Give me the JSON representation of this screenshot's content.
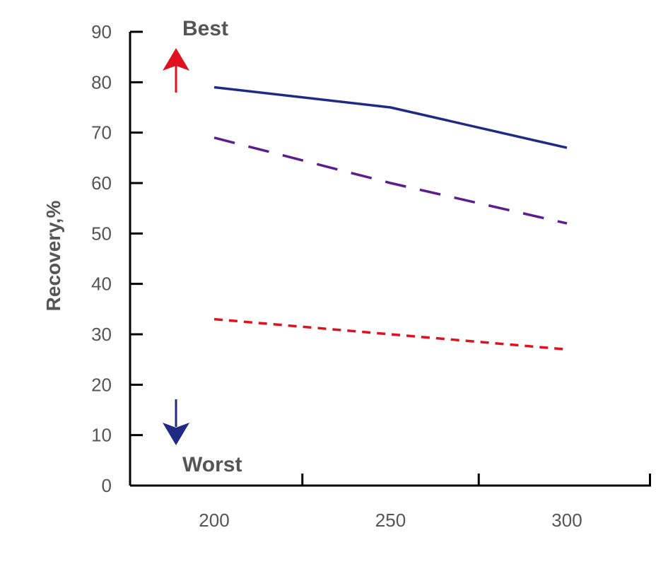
{
  "chart_data": {
    "type": "line",
    "title": "",
    "xlabel": "",
    "ylabel": "Recovery,%",
    "x": [
      200,
      250,
      300
    ],
    "xlim": [
      200,
      300
    ],
    "ylim": [
      0,
      90
    ],
    "y_ticks": [
      0,
      10,
      20,
      30,
      40,
      50,
      60,
      70,
      80,
      90
    ],
    "grid": false,
    "series": [
      {
        "values": [
          79,
          75,
          67
        ],
        "color": "#1f2a85",
        "style": "solid"
      },
      {
        "values": [
          69,
          60,
          52
        ],
        "color": "#5b1e8c",
        "style": "long-dash"
      },
      {
        "values": [
          33,
          30,
          27
        ],
        "color": "#e0111e",
        "style": "short-dash"
      }
    ],
    "annotations": [
      {
        "text": "Best",
        "arrow": "up",
        "color": "#e0111e"
      },
      {
        "text": "Worst",
        "arrow": "down",
        "color": "#1f2a85"
      }
    ]
  }
}
